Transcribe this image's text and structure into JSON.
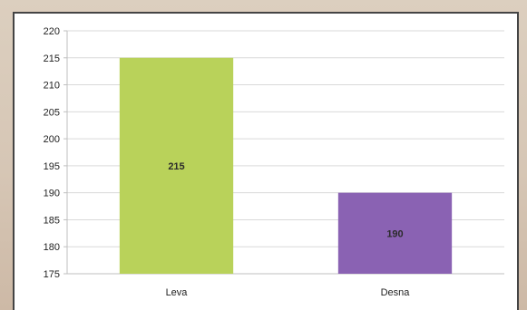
{
  "chart_data": {
    "type": "bar",
    "categories": [
      "Leva",
      "Desna"
    ],
    "values": [
      215,
      190
    ],
    "data_labels": [
      "215",
      "190"
    ],
    "bar_colors": [
      "#b9d25a",
      "#8a62b3"
    ],
    "ylim": [
      175,
      220
    ],
    "yticks": [
      175,
      180,
      185,
      190,
      195,
      200,
      205,
      210,
      215,
      220
    ],
    "grid": true,
    "gridline_color": "#d9d9d9",
    "legend": "none"
  }
}
